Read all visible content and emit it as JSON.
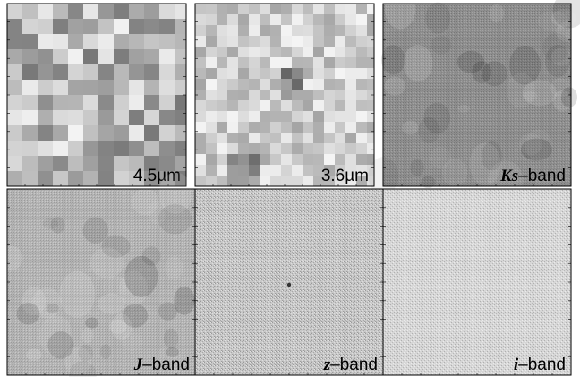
{
  "panels": [
    {
      "id": "p1",
      "band": "",
      "suffix": "4.5µm",
      "texture": "coarse",
      "row": 0,
      "col": 0
    },
    {
      "id": "p2",
      "band": "",
      "suffix": "3.6µm",
      "texture": "medium",
      "row": 0,
      "col": 1
    },
    {
      "id": "p3",
      "band": "Ks",
      "suffix": "–band",
      "texture": "smooth-dark",
      "row": 0,
      "col": 2
    },
    {
      "id": "p4",
      "band": "J",
      "suffix": "–band",
      "texture": "smooth",
      "row": 1,
      "col": 0
    },
    {
      "id": "p5",
      "band": "z",
      "suffix": "–band",
      "texture": "noise",
      "row": 1,
      "col": 1
    },
    {
      "id": "p6",
      "band": "i",
      "suffix": "–band",
      "texture": "noise-light",
      "row": 1,
      "col": 2
    }
  ],
  "colors": {
    "background": "#ffffff",
    "frame": "#000000",
    "label": "#000000"
  }
}
